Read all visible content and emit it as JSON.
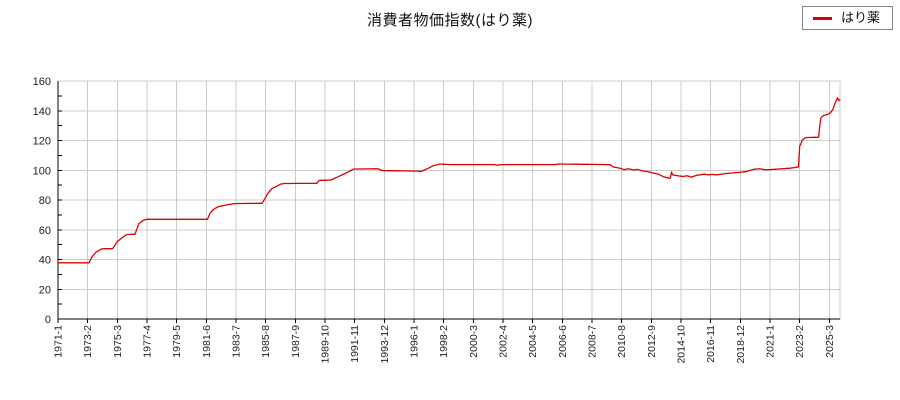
{
  "page": {
    "background_color": "#ffffff"
  },
  "legend": {
    "position": "top-right",
    "items": [
      {
        "label": "はり薬",
        "color": "#dd0000"
      }
    ]
  },
  "chart_data": {
    "type": "line",
    "title": "消費者物価指数(はり薬)",
    "x_axis": {
      "unit": "year-month",
      "start_month": "1971-1",
      "end_month": "2025-12",
      "label_rotation_deg": -90,
      "tick_labels": [
        "1971-1",
        "1973-2",
        "1975-3",
        "1977-4",
        "1979-5",
        "1981-6",
        "1983-7",
        "1985-8",
        "1987-9",
        "1989-10",
        "1991-11",
        "1993-12",
        "1996-1",
        "1998-2",
        "2000-3",
        "2002-4",
        "2004-5",
        "2006-6",
        "2008-7",
        "2010-8",
        "2012-9",
        "2014-10",
        "2016-11",
        "2018-12",
        "2021-1",
        "2023-2",
        "2025-3"
      ]
    },
    "y_axis": {
      "min": 0,
      "max": 160,
      "major_tick_step": 20,
      "minor_tick_step": 10,
      "tick_labels": [
        "0",
        "20",
        "40",
        "60",
        "80",
        "100",
        "120",
        "140",
        "160"
      ]
    },
    "grid": {
      "show": true,
      "color": "#cccccc"
    },
    "axis_color": "#000000",
    "text_color": "#222222",
    "legend_position": "top-right",
    "series": [
      {
        "name": "はり薬",
        "color": "#dd0000",
        "line_width": 1.3,
        "interpolation": "monthly-linear",
        "anchors": [
          [
            "1971-1",
            37.8
          ],
          [
            "1973-3",
            37.8
          ],
          [
            "1973-6",
            42.0
          ],
          [
            "1973-9",
            45.0
          ],
          [
            "1974-2",
            47.2
          ],
          [
            "1974-11",
            47.3
          ],
          [
            "1975-3",
            52.0
          ],
          [
            "1975-7",
            54.7
          ],
          [
            "1975-11",
            56.8
          ],
          [
            "1976-6",
            57.0
          ],
          [
            "1976-9",
            64.0
          ],
          [
            "1977-1",
            66.4
          ],
          [
            "1977-4",
            67.0
          ],
          [
            "1981-7",
            67.0
          ],
          [
            "1981-9",
            71.0
          ],
          [
            "1981-12",
            73.7
          ],
          [
            "1982-4",
            75.5
          ],
          [
            "1983-1",
            77.0
          ],
          [
            "1983-6",
            77.6
          ],
          [
            "1985-5",
            77.8
          ],
          [
            "1985-10",
            84.5
          ],
          [
            "1986-1",
            87.5
          ],
          [
            "1986-9",
            90.8
          ],
          [
            "1986-12",
            91.1
          ],
          [
            "1989-3",
            91.2
          ],
          [
            "1989-5",
            93.2
          ],
          [
            "1990-3",
            93.4
          ],
          [
            "1990-10",
            96.0
          ],
          [
            "1991-6",
            99.0
          ],
          [
            "1991-10",
            100.8
          ],
          [
            "1993-7",
            101.0
          ],
          [
            "1993-10",
            99.8
          ],
          [
            "1996-4",
            99.4
          ],
          [
            "1996-7",
            99.2
          ],
          [
            "1997-1",
            101.3
          ],
          [
            "1997-5",
            103.0
          ],
          [
            "1997-11",
            104.2
          ],
          [
            "1998-7",
            103.8
          ],
          [
            "2001-9",
            103.8
          ],
          [
            "2001-11",
            103.3
          ],
          [
            "2002-2",
            103.8
          ],
          [
            "2005-12",
            103.8
          ],
          [
            "2006-3",
            104.2
          ],
          [
            "2009-10",
            103.8
          ],
          [
            "2010-1",
            102.2
          ],
          [
            "2010-7",
            101.3
          ],
          [
            "2010-10",
            100.4
          ],
          [
            "2011-2",
            101.0
          ],
          [
            "2011-6",
            100.2
          ],
          [
            "2011-9",
            100.6
          ],
          [
            "2012-2",
            99.5
          ],
          [
            "2012-6",
            99.1
          ],
          [
            "2012-11",
            98.0
          ],
          [
            "2013-3",
            97.4
          ],
          [
            "2013-7",
            95.7
          ],
          [
            "2013-10",
            95.0
          ],
          [
            "2014-1",
            94.5
          ],
          [
            "2014-2",
            98.8
          ],
          [
            "2014-3",
            96.9
          ],
          [
            "2014-8",
            96.2
          ],
          [
            "2014-12",
            95.8
          ],
          [
            "2015-3",
            96.3
          ],
          [
            "2015-7",
            95.4
          ],
          [
            "2015-11",
            96.6
          ],
          [
            "2016-2",
            96.9
          ],
          [
            "2016-6",
            97.4
          ],
          [
            "2016-9",
            96.9
          ],
          [
            "2017-1",
            97.2
          ],
          [
            "2017-4",
            96.9
          ],
          [
            "2017-12",
            97.8
          ],
          [
            "2018-9",
            98.4
          ],
          [
            "2019-5",
            99.1
          ],
          [
            "2019-11",
            100.6
          ],
          [
            "2020-4",
            101.0
          ],
          [
            "2020-10",
            100.3
          ],
          [
            "2021-6",
            100.7
          ],
          [
            "2022-6",
            101.4
          ],
          [
            "2023-1",
            102.2
          ],
          [
            "2023-2",
            116.3
          ],
          [
            "2023-3",
            117.5
          ],
          [
            "2023-4",
            120.0
          ],
          [
            "2023-6",
            121.5
          ],
          [
            "2023-8",
            122.0
          ],
          [
            "2024-6",
            122.2
          ],
          [
            "2024-7",
            130.0
          ],
          [
            "2024-8",
            135.3
          ],
          [
            "2024-10",
            136.8
          ],
          [
            "2025-2",
            137.6
          ],
          [
            "2025-4",
            138.7
          ],
          [
            "2025-6",
            141.0
          ],
          [
            "2025-8",
            145.5
          ],
          [
            "2025-10",
            148.8
          ],
          [
            "2025-11",
            146.8
          ],
          [
            "2025-12",
            147.3
          ]
        ]
      }
    ]
  }
}
